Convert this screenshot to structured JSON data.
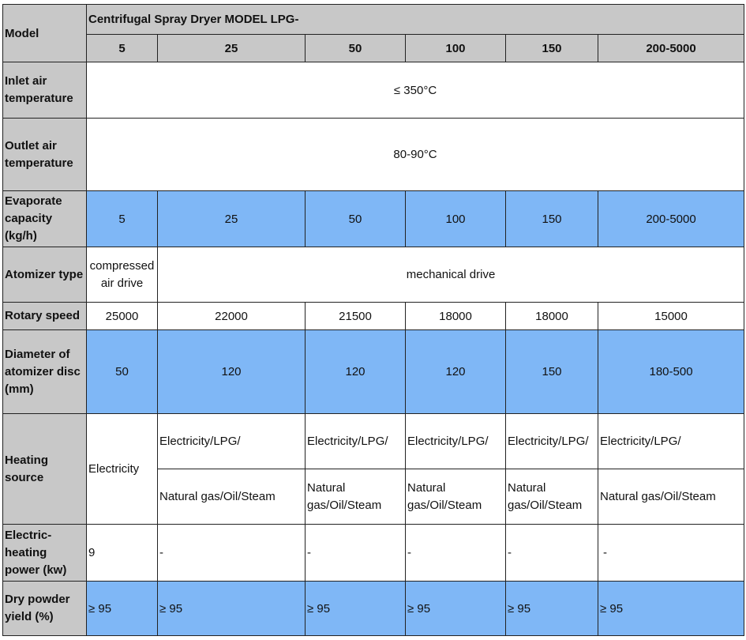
{
  "header": {
    "model_label": "Model",
    "title": "Centrifugal Spray Dryer MODEL LPG-",
    "models": [
      "5",
      "25",
      "50",
      "100",
      "150",
      "200-5000"
    ]
  },
  "rows": {
    "inlet": {
      "label": "Inlet air temperature",
      "value": "≤ 350°C"
    },
    "outlet": {
      "label": "Outlet air temperature",
      "value": "80-90°C"
    },
    "evaporate": {
      "label": "Evaporate capacity (kg/h)",
      "values": [
        "5",
        "25",
        "50",
        "100",
        "150",
        "200-5000"
      ]
    },
    "atomizer": {
      "label": "Atomizer type",
      "first": "compressed air drive",
      "rest": "mechanical drive"
    },
    "rotary": {
      "label": "Rotary speed",
      "values": [
        "25000",
        "22000",
        "21500",
        "18000",
        "18000",
        "15000"
      ]
    },
    "disc": {
      "label": "Diameter of atomizer disc (mm)",
      "values": [
        "50",
        "120",
        "120",
        "120",
        "150",
        "180-500"
      ]
    },
    "heating": {
      "label": "Heating source",
      "first": "Electricity",
      "top": [
        "Electricity/LPG/",
        "Electricity/LPG/",
        "Electricity/LPG/",
        "Electricity/LPG/",
        "Electricity/LPG/"
      ],
      "bottom": [
        "Natural gas/Oil/Steam",
        "Natural gas/Oil/Steam",
        "Natural gas/Oil/Steam",
        "Natural gas/Oil/Steam",
        "Natural gas/Oil/Steam"
      ]
    },
    "electric": {
      "label": "Electric-heating power (kw)",
      "values": [
        "9",
        "-",
        "-",
        "-",
        "-",
        "-"
      ]
    },
    "yield": {
      "label": "Dry powder yield (%)",
      "values": [
        "≥ 95",
        "≥ 95",
        "≥ 95",
        "≥ 95",
        "≥ 95",
        "≥ 95"
      ]
    }
  },
  "colors": {
    "header_gray": "#c8c8c8",
    "highlight_blue": "#7fb7f6"
  }
}
